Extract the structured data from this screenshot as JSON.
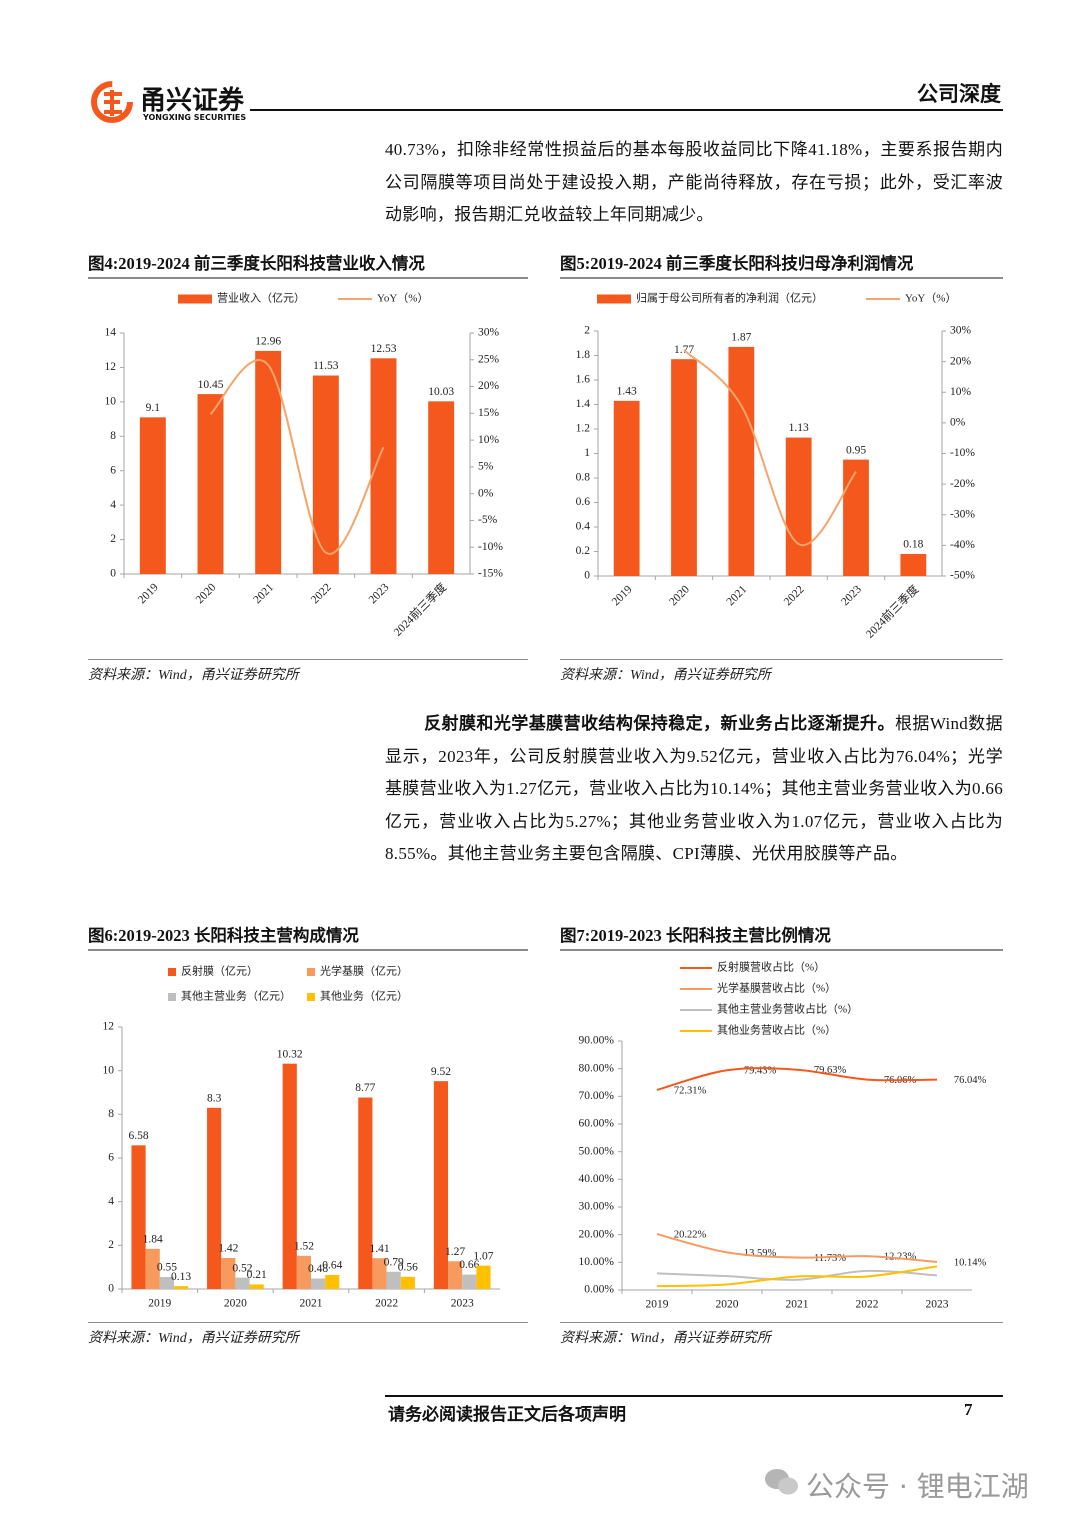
{
  "header": {
    "company_name": "甬兴证券",
    "company_name_en": "YONGXING SECURITIES",
    "section": "公司深度"
  },
  "paragraphs": [
    {
      "text": "40.73%，扣除非经常性损益后的基本每股收益同比下降41.18%，主要系报告期内公司隔膜等项目尚处于建设投入期，产能尚待释放，存在亏损；此外，受汇率波动影响，报告期汇兑收益较上年同期减少。"
    },
    {
      "lead": "反射膜和光学基膜营收结构保持稳定，新业务占比逐渐提升。",
      "text": "根据Wind数据显示，2023年，公司反射膜营业收入为9.52亿元，营业收入占比为76.04%；光学基膜营业收入为1.27亿元，营业收入占比为10.14%；其他主营业务营业收入为0.66亿元，营业收入占比为5.27%；其他业务营业收入为1.07亿元，营业收入占比为8.55%。其他主营业务主要包含隔膜、CPI薄膜、光伏用胶膜等产品。"
    }
  ],
  "chart_data": [
    {
      "type": "bar",
      "title": "图4:2019-2024 前三季度长阳科技营业收入情况",
      "source": "资料来源：Wind，甬兴证券研究所",
      "categories": [
        "2019",
        "2020",
        "2021",
        "2022",
        "2023",
        "2024前三季度"
      ],
      "series": [
        {
          "name": "营业收入（亿元）",
          "color": "#f4581c",
          "values": [
            9.1,
            10.45,
            12.96,
            11.53,
            12.53,
            10.03
          ]
        },
        {
          "name": "YoY（%）",
          "type": "line",
          "axis": "y2",
          "color": "#f5a46a",
          "values": [
            null,
            14.84,
            24.02,
            -11.03,
            8.67,
            null
          ]
        }
      ],
      "ylim": [
        0,
        14
      ],
      "yticks": [
        0,
        2,
        4,
        6,
        8,
        10,
        12,
        14
      ],
      "y2lim": [
        -15,
        30
      ],
      "y2ticks": [
        {
          "value": -15,
          "label": "-15%"
        },
        {
          "value": -10,
          "label": "-10%"
        },
        {
          "value": -5,
          "label": "-5%"
        },
        {
          "value": 0,
          "label": "0%"
        },
        {
          "value": 5,
          "label": "5%"
        },
        {
          "value": 10,
          "label": "10%"
        },
        {
          "value": 15,
          "label": "15%"
        },
        {
          "value": 20,
          "label": "20%"
        },
        {
          "value": 25,
          "label": "25%"
        },
        {
          "value": 30,
          "label": "30%"
        }
      ]
    },
    {
      "type": "bar",
      "title": "图5:2019-2024 前三季度长阳科技归母净利润情况",
      "source": "资料来源：Wind，甬兴证券研究所",
      "categories": [
        "2019",
        "2020",
        "2021",
        "2022",
        "2023",
        "2024前三季度"
      ],
      "series": [
        {
          "name": "归属于母公司所有者的净利润（亿元）",
          "color": "#f4581c",
          "values": [
            1.43,
            1.77,
            1.87,
            1.13,
            0.95,
            0.18
          ]
        },
        {
          "name": "YoY（%）",
          "type": "line",
          "axis": "y2",
          "color": "#f5a46a",
          "values": [
            null,
            23.78,
            5.65,
            -39.57,
            -15.93,
            null
          ]
        }
      ],
      "ylim": [
        0,
        2
      ],
      "yticks": [
        0,
        0.2,
        0.4,
        0.6,
        0.8,
        1,
        1.2,
        1.4,
        1.6,
        1.8,
        2
      ],
      "y2lim": [
        -50,
        30
      ],
      "y2ticks": [
        {
          "value": -50,
          "label": "-50%"
        },
        {
          "value": -40,
          "label": "-40%"
        },
        {
          "value": -30,
          "label": "-30%"
        },
        {
          "value": -20,
          "label": "-20%"
        },
        {
          "value": -10,
          "label": "-10%"
        },
        {
          "value": 0,
          "label": "0%"
        },
        {
          "value": 10,
          "label": "10%"
        },
        {
          "value": 20,
          "label": "20%"
        },
        {
          "value": 30,
          "label": "30%"
        }
      ]
    },
    {
      "type": "bar",
      "title": "图6:2019-2023 长阳科技主营构成情况",
      "source": "资料来源：Wind，甬兴证券研究所",
      "categories": [
        "2019",
        "2020",
        "2021",
        "2022",
        "2023"
      ],
      "series": [
        {
          "name": "反射膜（亿元）",
          "color": "#f4581c",
          "values": [
            6.58,
            8.3,
            10.32,
            8.77,
            9.52
          ]
        },
        {
          "name": "光学基膜（亿元）",
          "color": "#f79a5e",
          "values": [
            1.84,
            1.42,
            1.52,
            1.41,
            1.27
          ]
        },
        {
          "name": "其他主营业务（亿元）",
          "color": "#bfbfbf",
          "values": [
            0.55,
            0.52,
            0.48,
            0.79,
            0.66
          ]
        },
        {
          "name": "其他业务（亿元）",
          "color": "#ffc000",
          "values": [
            0.13,
            0.21,
            0.64,
            0.56,
            1.07
          ]
        }
      ],
      "ylim": [
        0,
        12
      ],
      "yticks": [
        0,
        2,
        4,
        6,
        8,
        10,
        12
      ]
    },
    {
      "type": "line",
      "title": "图7:2019-2023 长阳科技主营比例情况",
      "source": "资料来源：Wind，甬兴证券研究所",
      "categories": [
        "2019",
        "2020",
        "2021",
        "2022",
        "2023"
      ],
      "series": [
        {
          "name": "反射膜营收占比（%）",
          "color": "#f4581c",
          "values": [
            72.31,
            79.43,
            79.63,
            76.06,
            76.04
          ],
          "value_labels": [
            "72.31%",
            "79.43%",
            "79.63%",
            "76.06%",
            "76.04%"
          ]
        },
        {
          "name": "光学基膜营收占比（%）",
          "color": "#f79a5e",
          "values": [
            20.22,
            13.59,
            11.73,
            12.23,
            10.14
          ],
          "value_labels": [
            "20.22%",
            "13.59%",
            "11.73%",
            "12.23%",
            "10.14%"
          ]
        },
        {
          "name": "其他主营业务营收占比（%）",
          "color": "#bfbfbf",
          "values": [
            6.0,
            5.0,
            3.7,
            6.9,
            5.27
          ]
        },
        {
          "name": "其他业务营收占比（%）",
          "color": "#ffc000",
          "values": [
            1.4,
            2.0,
            4.9,
            4.9,
            8.55
          ]
        }
      ],
      "ylim": [
        0,
        90
      ],
      "yticks": [
        {
          "value": 0,
          "label": "0.00%"
        },
        {
          "value": 10,
          "label": "10.00%"
        },
        {
          "value": 20,
          "label": "20.00%"
        },
        {
          "value": 30,
          "label": "30.00%"
        },
        {
          "value": 40,
          "label": "40.00%"
        },
        {
          "value": 50,
          "label": "50.00%"
        },
        {
          "value": 60,
          "label": "60.00%"
        },
        {
          "value": 70,
          "label": "70.00%"
        },
        {
          "value": 80,
          "label": "80.00%"
        },
        {
          "value": 90,
          "label": "90.00%"
        }
      ]
    }
  ],
  "footer": {
    "notice": "请务必阅读报告正文后各项声明",
    "page_number": 7
  },
  "watermark": "公众号 · 锂电江湖"
}
